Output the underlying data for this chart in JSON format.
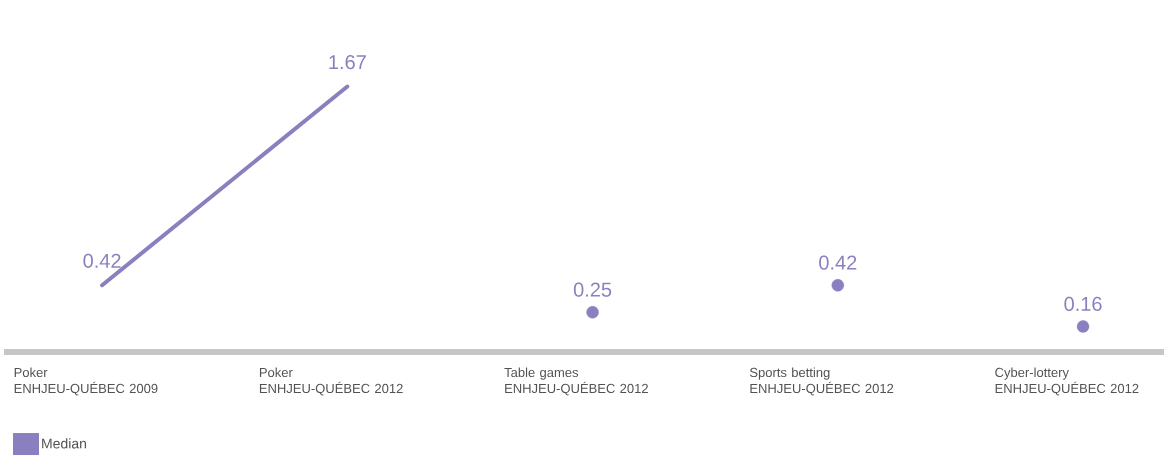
{
  "chart_data": {
    "type": "line",
    "categories": [
      "Poker ENHJEU-QUÉBEC 2009",
      "Poker ENHJEU-QUÉBEC 2012",
      "Table games ENHJEU-QUÉBEC 2012",
      "Sports betting ENHJEU-QUÉBEC 2012",
      "Cyber-lottery ENHJEU-QUÉBEC 2012"
    ],
    "series": [
      {
        "name": "Median",
        "color": "#8a80bf",
        "values": [
          0.42,
          1.67,
          null,
          null,
          null
        ]
      },
      {
        "type": "scatter",
        "marker": "circle",
        "color": "#8a80bf",
        "values": [
          null,
          null,
          0.25,
          0.42,
          0.16
        ]
      }
    ],
    "data_labels": true,
    "legend": "bottom left"
  }
}
